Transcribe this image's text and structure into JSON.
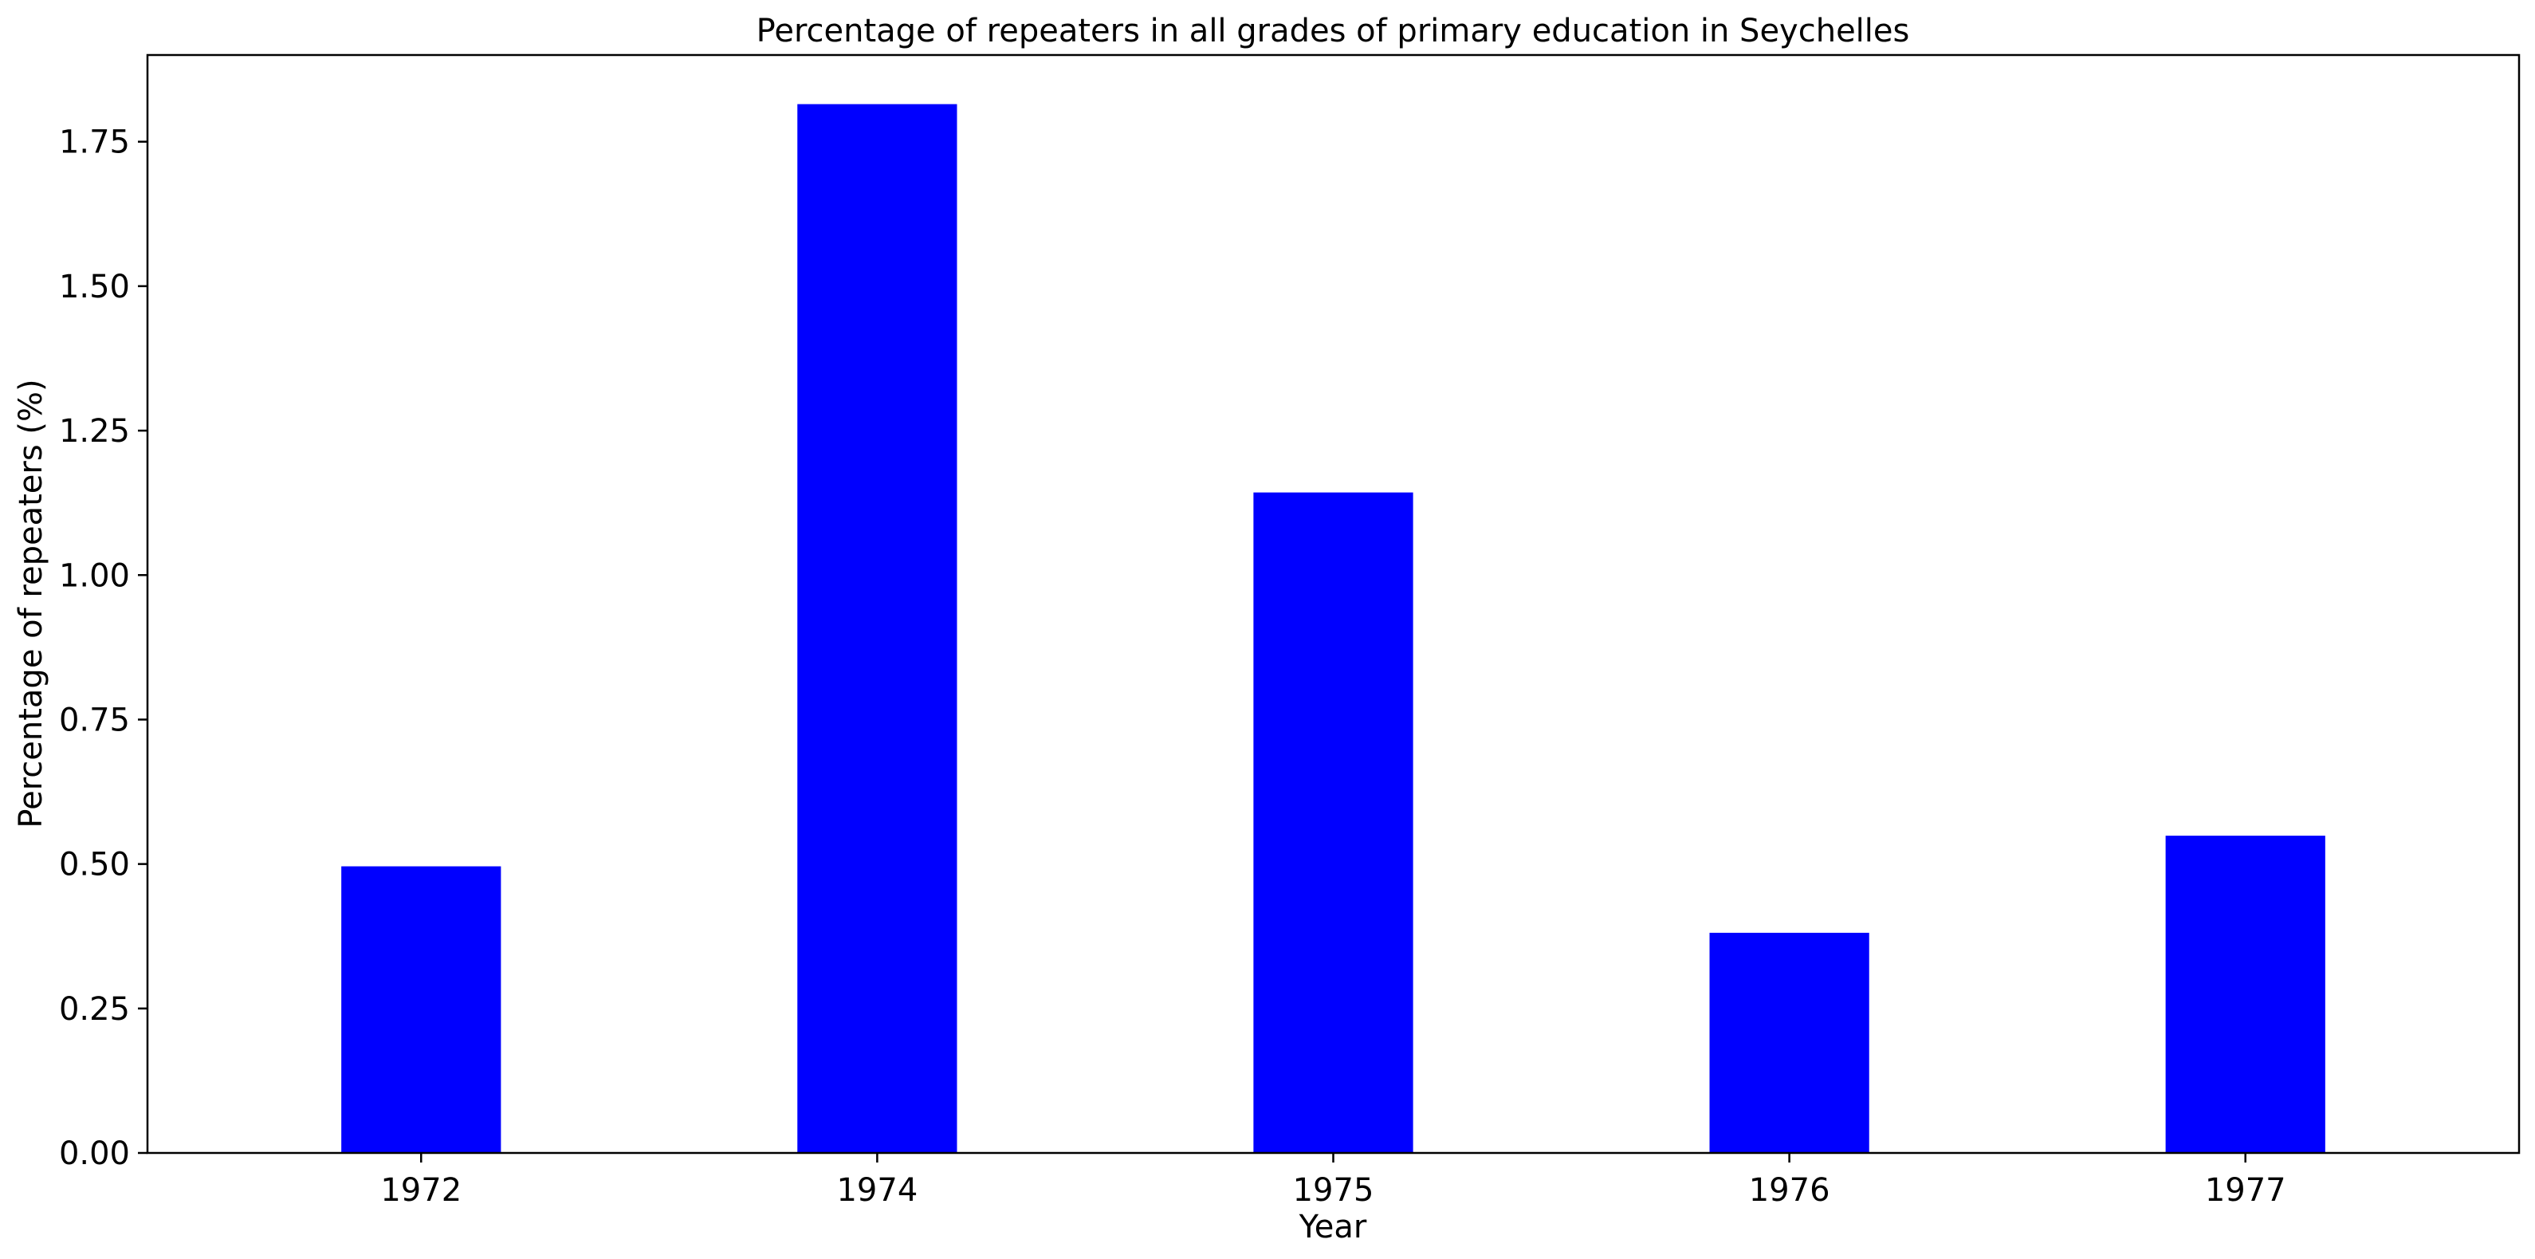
{
  "chart_data": {
    "type": "bar",
    "title": "Percentage of repeaters in all grades of primary education in Seychelles",
    "xlabel": "Year",
    "ylabel": "Percentage of repeaters (%)",
    "categories": [
      "1972",
      "1974",
      "1975",
      "1976",
      "1977"
    ],
    "values": [
      0.496,
      1.815,
      1.143,
      0.381,
      0.549
    ],
    "ylim": [
      0,
      1.9
    ],
    "yticks": [
      0.0,
      0.25,
      0.5,
      0.75,
      1.0,
      1.25,
      1.5,
      1.75
    ],
    "ytick_labels": [
      "0.00",
      "0.25",
      "0.50",
      "0.75",
      "1.00",
      "1.25",
      "1.50",
      "1.75"
    ],
    "bar_color": "#0000ff",
    "grid": false,
    "legend": "none"
  }
}
